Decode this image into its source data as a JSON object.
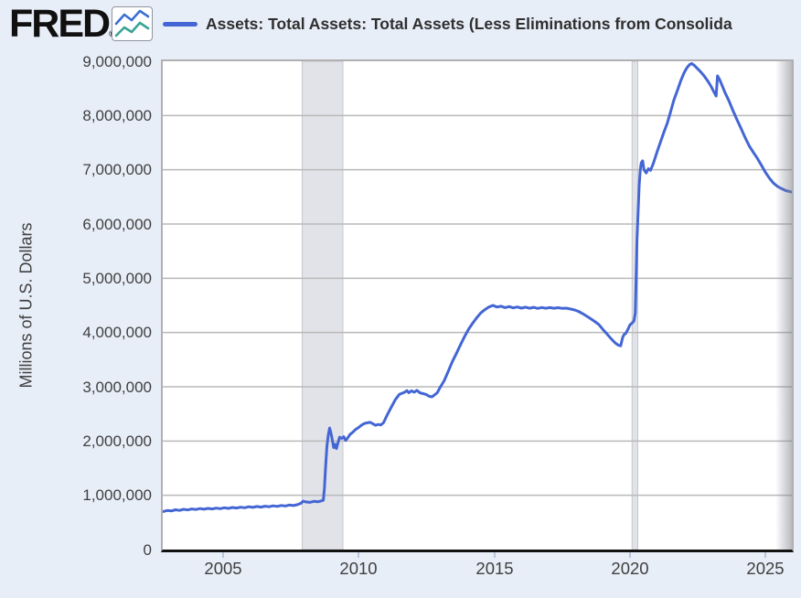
{
  "header": {
    "logo_text": "FRED",
    "logo_reg": "®",
    "legend_label": "Assets: Total Assets: Total Assets (Less Eliminations from Consolida"
  },
  "colors": {
    "background": "#e8eef8",
    "plot_background": "#ffffff",
    "gridline": "#b9b9b9",
    "recession_band_fill": "#e1e3e9",
    "recession_band_edge": "#c6c8ce",
    "axis_line": "#121212",
    "tick_text": "#3f3f3f",
    "legend_text": "#2f2f2f",
    "line": "#4466d4",
    "x_tick_mark": "#b9c6dd",
    "logo_icon_blue": "#3b6fd4",
    "logo_icon_teal": "#3aa394"
  },
  "chart_data": {
    "type": "line",
    "series_name": "Assets: Total Assets: Total Assets (Less Eliminations from Consolida",
    "ylabel": "Millions of U.S. Dollars",
    "legend_position": "top",
    "grid": "horizontal",
    "x_domain": [
      2002.78,
      2025.97
    ],
    "y_domain": [
      0,
      9000000
    ],
    "x_ticks": [
      {
        "value": 2005,
        "label": "2005"
      },
      {
        "value": 2010,
        "label": "2010"
      },
      {
        "value": 2015,
        "label": "2015"
      },
      {
        "value": 2020,
        "label": "2020"
      },
      {
        "value": 2025,
        "label": "2025"
      }
    ],
    "y_ticks": [
      {
        "value": 0,
        "label": "0"
      },
      {
        "value": 1000000,
        "label": "1,000,000"
      },
      {
        "value": 2000000,
        "label": "2,000,000"
      },
      {
        "value": 3000000,
        "label": "3,000,000"
      },
      {
        "value": 4000000,
        "label": "4,000,000"
      },
      {
        "value": 5000000,
        "label": "5,000,000"
      },
      {
        "value": 6000000,
        "label": "6,000,000"
      },
      {
        "value": 7000000,
        "label": "7,000,000"
      },
      {
        "value": 8000000,
        "label": "8,000,000"
      },
      {
        "value": 9000000,
        "label": "9,000,000"
      }
    ],
    "recession_bands": [
      {
        "start": 2007.92,
        "end": 2009.42
      },
      {
        "start": 2020.08,
        "end": 2020.29
      }
    ],
    "points": [
      [
        2002.78,
        700000
      ],
      [
        2002.95,
        719000
      ],
      [
        2003.1,
        712000
      ],
      [
        2003.25,
        733000
      ],
      [
        2003.4,
        722000
      ],
      [
        2003.55,
        742000
      ],
      [
        2003.7,
        730000
      ],
      [
        2003.85,
        748000
      ],
      [
        2004.0,
        738000
      ],
      [
        2004.15,
        755000
      ],
      [
        2004.3,
        743000
      ],
      [
        2004.45,
        759000
      ],
      [
        2004.6,
        748000
      ],
      [
        2004.75,
        764000
      ],
      [
        2004.9,
        753000
      ],
      [
        2005.05,
        770000
      ],
      [
        2005.2,
        759000
      ],
      [
        2005.35,
        775000
      ],
      [
        2005.5,
        765000
      ],
      [
        2005.65,
        781000
      ],
      [
        2005.8,
        771000
      ],
      [
        2005.95,
        788000
      ],
      [
        2006.1,
        777000
      ],
      [
        2006.25,
        793000
      ],
      [
        2006.4,
        782000
      ],
      [
        2006.55,
        799000
      ],
      [
        2006.7,
        789000
      ],
      [
        2006.85,
        806000
      ],
      [
        2007.0,
        796000
      ],
      [
        2007.15,
        813000
      ],
      [
        2007.3,
        803000
      ],
      [
        2007.45,
        820000
      ],
      [
        2007.6,
        810000
      ],
      [
        2007.75,
        828000
      ],
      [
        2007.88,
        855000
      ],
      [
        2007.95,
        891000
      ],
      [
        2008.05,
        878000
      ],
      [
        2008.2,
        870000
      ],
      [
        2008.35,
        888000
      ],
      [
        2008.5,
        879000
      ],
      [
        2008.62,
        896000
      ],
      [
        2008.7,
        909000
      ],
      [
        2008.74,
        1130000
      ],
      [
        2008.78,
        1500000
      ],
      [
        2008.83,
        1900000
      ],
      [
        2008.88,
        2110000
      ],
      [
        2008.93,
        2240000
      ],
      [
        2008.98,
        2150000
      ],
      [
        2009.03,
        2020000
      ],
      [
        2009.08,
        1880000
      ],
      [
        2009.13,
        1940000
      ],
      [
        2009.18,
        1860000
      ],
      [
        2009.25,
        1990000
      ],
      [
        2009.3,
        2070000
      ],
      [
        2009.38,
        2050000
      ],
      [
        2009.45,
        2080000
      ],
      [
        2009.52,
        2010000
      ],
      [
        2009.6,
        2060000
      ],
      [
        2009.68,
        2120000
      ],
      [
        2009.78,
        2160000
      ],
      [
        2009.88,
        2210000
      ],
      [
        2010.0,
        2250000
      ],
      [
        2010.1,
        2290000
      ],
      [
        2010.2,
        2320000
      ],
      [
        2010.3,
        2335000
      ],
      [
        2010.42,
        2345000
      ],
      [
        2010.52,
        2320000
      ],
      [
        2010.62,
        2290000
      ],
      [
        2010.72,
        2305000
      ],
      [
        2010.82,
        2295000
      ],
      [
        2010.92,
        2340000
      ],
      [
        2011.05,
        2480000
      ],
      [
        2011.2,
        2620000
      ],
      [
        2011.35,
        2760000
      ],
      [
        2011.5,
        2860000
      ],
      [
        2011.6,
        2880000
      ],
      [
        2011.7,
        2900000
      ],
      [
        2011.78,
        2930000
      ],
      [
        2011.85,
        2890000
      ],
      [
        2011.95,
        2925000
      ],
      [
        2012.05,
        2900000
      ],
      [
        2012.15,
        2935000
      ],
      [
        2012.25,
        2890000
      ],
      [
        2012.4,
        2870000
      ],
      [
        2012.5,
        2855000
      ],
      [
        2012.6,
        2825000
      ],
      [
        2012.7,
        2815000
      ],
      [
        2012.8,
        2850000
      ],
      [
        2012.9,
        2890000
      ],
      [
        2013.0,
        2985000
      ],
      [
        2013.15,
        3110000
      ],
      [
        2013.3,
        3280000
      ],
      [
        2013.45,
        3460000
      ],
      [
        2013.6,
        3610000
      ],
      [
        2013.75,
        3770000
      ],
      [
        2013.9,
        3920000
      ],
      [
        2014.05,
        4060000
      ],
      [
        2014.2,
        4170000
      ],
      [
        2014.35,
        4270000
      ],
      [
        2014.5,
        4360000
      ],
      [
        2014.65,
        4420000
      ],
      [
        2014.8,
        4470000
      ],
      [
        2014.95,
        4500000
      ],
      [
        2015.1,
        4470000
      ],
      [
        2015.25,
        4485000
      ],
      [
        2015.4,
        4460000
      ],
      [
        2015.55,
        4478000
      ],
      [
        2015.7,
        4455000
      ],
      [
        2015.85,
        4472000
      ],
      [
        2016.0,
        4450000
      ],
      [
        2016.15,
        4468000
      ],
      [
        2016.3,
        4448000
      ],
      [
        2016.45,
        4465000
      ],
      [
        2016.6,
        4445000
      ],
      [
        2016.75,
        4462000
      ],
      [
        2016.9,
        4448000
      ],
      [
        2017.05,
        4460000
      ],
      [
        2017.2,
        4448000
      ],
      [
        2017.35,
        4458000
      ],
      [
        2017.5,
        4446000
      ],
      [
        2017.65,
        4450000
      ],
      [
        2017.8,
        4435000
      ],
      [
        2017.95,
        4418000
      ],
      [
        2018.1,
        4390000
      ],
      [
        2018.25,
        4350000
      ],
      [
        2018.4,
        4305000
      ],
      [
        2018.55,
        4255000
      ],
      [
        2018.7,
        4205000
      ],
      [
        2018.85,
        4150000
      ],
      [
        2019.0,
        4060000
      ],
      [
        2019.15,
        3975000
      ],
      [
        2019.3,
        3890000
      ],
      [
        2019.45,
        3810000
      ],
      [
        2019.58,
        3765000
      ],
      [
        2019.66,
        3755000
      ],
      [
        2019.73,
        3905000
      ],
      [
        2019.78,
        3960000
      ],
      [
        2019.85,
        3985000
      ],
      [
        2019.93,
        4060000
      ],
      [
        2020.0,
        4140000
      ],
      [
        2020.08,
        4175000
      ],
      [
        2020.15,
        4215000
      ],
      [
        2020.2,
        4360000
      ],
      [
        2020.23,
        5000000
      ],
      [
        2020.26,
        5700000
      ],
      [
        2020.3,
        6200000
      ],
      [
        2020.34,
        6700000
      ],
      [
        2020.38,
        7000000
      ],
      [
        2020.42,
        7130000
      ],
      [
        2020.47,
        7165000
      ],
      [
        2020.52,
        7000000
      ],
      [
        2020.6,
        6940000
      ],
      [
        2020.68,
        7020000
      ],
      [
        2020.76,
        6990000
      ],
      [
        2020.86,
        7110000
      ],
      [
        2021.0,
        7330000
      ],
      [
        2021.12,
        7500000
      ],
      [
        2021.25,
        7690000
      ],
      [
        2021.38,
        7860000
      ],
      [
        2021.5,
        8070000
      ],
      [
        2021.62,
        8280000
      ],
      [
        2021.75,
        8460000
      ],
      [
        2021.88,
        8650000
      ],
      [
        2022.0,
        8790000
      ],
      [
        2022.1,
        8880000
      ],
      [
        2022.2,
        8940000
      ],
      [
        2022.28,
        8960000
      ],
      [
        2022.38,
        8920000
      ],
      [
        2022.5,
        8860000
      ],
      [
        2022.62,
        8800000
      ],
      [
        2022.75,
        8720000
      ],
      [
        2022.88,
        8630000
      ],
      [
        2023.0,
        8530000
      ],
      [
        2023.1,
        8430000
      ],
      [
        2023.18,
        8360000
      ],
      [
        2023.23,
        8730000
      ],
      [
        2023.3,
        8670000
      ],
      [
        2023.4,
        8550000
      ],
      [
        2023.5,
        8430000
      ],
      [
        2023.65,
        8270000
      ],
      [
        2023.8,
        8090000
      ],
      [
        2023.95,
        7920000
      ],
      [
        2024.1,
        7760000
      ],
      [
        2024.25,
        7590000
      ],
      [
        2024.4,
        7440000
      ],
      [
        2024.55,
        7320000
      ],
      [
        2024.7,
        7210000
      ],
      [
        2024.85,
        7080000
      ],
      [
        2025.0,
        6950000
      ],
      [
        2025.15,
        6840000
      ],
      [
        2025.3,
        6750000
      ],
      [
        2025.45,
        6690000
      ],
      [
        2025.6,
        6650000
      ],
      [
        2025.75,
        6615000
      ],
      [
        2025.97,
        6590000
      ]
    ]
  }
}
